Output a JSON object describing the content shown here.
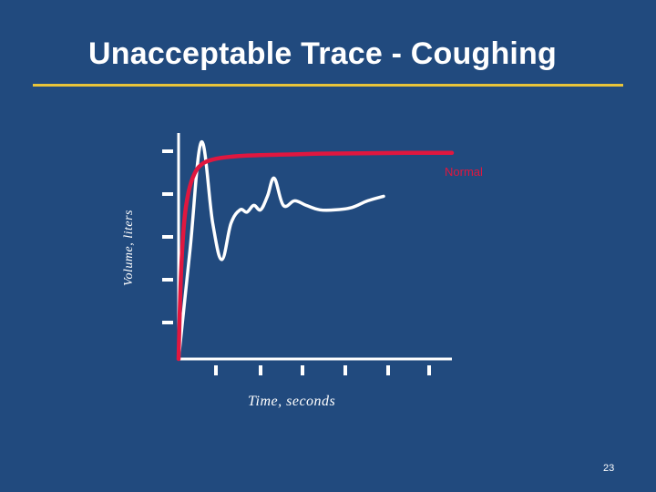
{
  "slide": {
    "title": "Unacceptable Trace - Coughing",
    "page_number": "23"
  },
  "colors": {
    "background": "#214a7e",
    "title_rule": "#e8c43a",
    "normal_curve": "#e0173f",
    "cough_curve": "#ffffff",
    "axes": "#ffffff"
  },
  "chart_data": {
    "type": "line",
    "xlabel": "Time, seconds",
    "ylabel": "Volume, liters",
    "xlim": [
      0,
      6
    ],
    "ylim": [
      0,
      5
    ],
    "x_ticks": [
      1,
      2,
      3,
      4,
      5,
      6
    ],
    "y_ticks": [
      1,
      2,
      3,
      4,
      5
    ],
    "grid": false,
    "series": [
      {
        "name": "Normal",
        "color": "#e0173f",
        "x": [
          0.0,
          0.05,
          0.12,
          0.22,
          0.35,
          0.5,
          0.7,
          1.0,
          1.5,
          2.2,
          3.0,
          4.0,
          5.0,
          6.0
        ],
        "y": [
          0.0,
          1.8,
          3.0,
          3.7,
          4.1,
          4.3,
          4.4,
          4.46,
          4.5,
          4.52,
          4.54,
          4.55,
          4.56,
          4.56
        ]
      },
      {
        "name": "",
        "color": "#ffffff",
        "x": [
          0.0,
          0.25,
          0.5,
          0.75,
          0.95,
          1.15,
          1.35,
          1.5,
          1.65,
          1.8,
          1.95,
          2.1,
          2.3,
          2.55,
          2.8,
          3.1,
          3.45,
          3.8,
          4.15,
          4.5
        ],
        "y": [
          0.0,
          2.4,
          4.8,
          3.0,
          2.2,
          3.0,
          3.3,
          3.25,
          3.4,
          3.3,
          3.6,
          4.0,
          3.4,
          3.5,
          3.4,
          3.3,
          3.3,
          3.35,
          3.5,
          3.6
        ]
      }
    ],
    "annotations": [
      "Normal"
    ]
  }
}
